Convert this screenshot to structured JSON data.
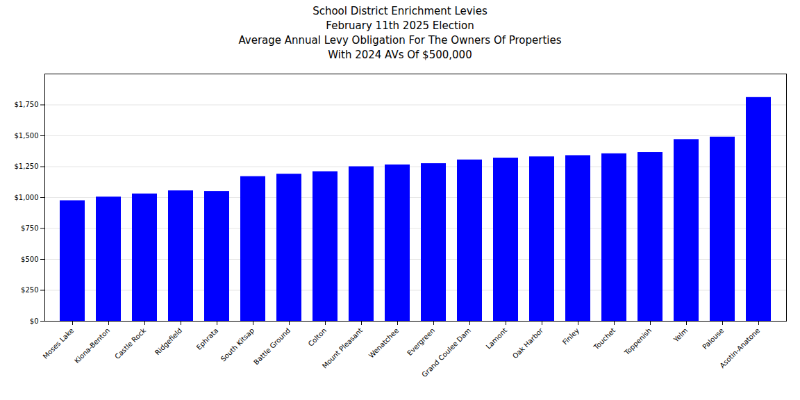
{
  "chart_data": {
    "type": "bar",
    "title": "School District Enrichment Levies\nFebruary 11th 2025 Election\nAverage Annual Levy Obligation For The Owners Of Properties\nWith 2024 AVs Of $500,000",
    "categories": [
      "Moses Lake",
      "Kiona-Benton",
      "Castle Rock",
      "Ridgefield",
      "Ephrata",
      "South Kitsap",
      "Battle Ground",
      "Colton",
      "Mount Pleasant",
      "Wenatchee",
      "Evergreen",
      "Grand Coulee Dam",
      "Lamont",
      "Oak Harbor",
      "Finley",
      "Touchet",
      "Toppenish",
      "Yelm",
      "Palouse",
      "Asotin-Anatone"
    ],
    "values": [
      975,
      1005,
      1030,
      1055,
      1050,
      1170,
      1190,
      1210,
      1250,
      1265,
      1275,
      1305,
      1320,
      1330,
      1340,
      1355,
      1365,
      1470,
      1490,
      1810
    ],
    "color": "#0000FF",
    "ylim": [
      0,
      2000
    ],
    "yticks": [
      {
        "value": 0,
        "label": "$0"
      },
      {
        "value": 250,
        "label": "$250"
      },
      {
        "value": 500,
        "label": "$500"
      },
      {
        "value": 750,
        "label": "$750"
      },
      {
        "value": 1000,
        "label": "$1,000"
      },
      {
        "value": 1250,
        "label": "$1,250"
      },
      {
        "value": 1500,
        "label": "$1,500"
      },
      {
        "value": 1750,
        "label": "$1,750"
      }
    ],
    "grid": true
  }
}
